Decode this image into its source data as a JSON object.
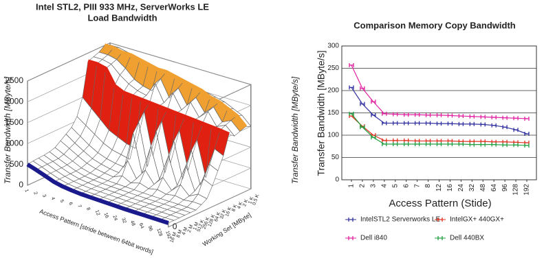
{
  "chart_data": [
    {
      "type": "surface",
      "title": [
        "Intel STL2, PIII 933 MHz, ServerWorks LE",
        "Load Bandwidth"
      ],
      "xlabel": "Access Pattern [stride between 64bit words]",
      "ylabel": "Working Set [MByte]",
      "zlabel": "Transfer Bandwidth [MByte/s]",
      "categories": [
        "1",
        "2",
        "3",
        "4",
        "5",
        "6",
        "7",
        "8",
        "12",
        "16",
        "24",
        "32",
        "48",
        "64",
        "96",
        "128",
        "192"
      ],
      "zlim": [
        0,
        2500
      ],
      "zticks": [
        0,
        500,
        1000,
        1500,
        2000,
        2500
      ],
      "series": [
        {
          "name": "0.5 K",
          "color": "#ffffff",
          "values": [
            2450,
            2450,
            2400,
            2350,
            2300,
            2250,
            2200,
            2200,
            2150,
            2100,
            2050,
            2000,
            1950,
            1900,
            1800,
            1700,
            1500
          ]
        },
        {
          "name": "1 K",
          "color": "#f0a030",
          "values": [
            2500,
            2500,
            2450,
            2450,
            2400,
            2350,
            2300,
            2300,
            2250,
            2200,
            2150,
            2100,
            2000,
            1950,
            1850,
            1750,
            1550
          ]
        },
        {
          "name": "2 K",
          "color": "#ffffff",
          "values": [
            2400,
            2400,
            2350,
            2200,
            2000,
            1900,
            1850,
            2200,
            1800,
            2100,
            1750,
            2000,
            1700,
            1900,
            1600,
            1700,
            1500
          ]
        },
        {
          "name": "4 K",
          "color": "#ffffff",
          "values": [
            2350,
            2350,
            2300,
            2100,
            1950,
            1850,
            1800,
            2150,
            1750,
            2050,
            1700,
            1950,
            1650,
            1850,
            1550,
            1650,
            1450
          ]
        },
        {
          "name": "8 K",
          "color": "#e02010",
          "values": [
            2300,
            2300,
            2250,
            1900,
            1800,
            1780,
            1760,
            1740,
            1720,
            1700,
            1680,
            1660,
            1640,
            1620,
            1600,
            1580,
            1550
          ]
        },
        {
          "name": "16 K",
          "color": "#ffffff",
          "values": [
            1500,
            1300,
            1100,
            900,
            800,
            700,
            650,
            1600,
            600,
            1500,
            550,
            1400,
            500,
            1300,
            450,
            1200,
            1100
          ]
        },
        {
          "name": "32 K",
          "color": "#ffffff",
          "values": [
            1100,
            950,
            800,
            650,
            550,
            500,
            450,
            1400,
            400,
            1300,
            380,
            1200,
            350,
            1100,
            330,
            900,
            800
          ]
        },
        {
          "name": "64 K",
          "color": "#ffffff",
          "values": [
            900,
            750,
            600,
            480,
            400,
            350,
            320,
            1200,
            300,
            1000,
            280,
            900,
            260,
            800,
            250,
            600,
            500
          ]
        },
        {
          "name": "128 K",
          "color": "#ffffff",
          "values": [
            800,
            650,
            520,
            400,
            330,
            280,
            250,
            600,
            230,
            500,
            220,
            450,
            200,
            400,
            190,
            300,
            250
          ]
        },
        {
          "name": "256 K",
          "color": "#ffffff",
          "values": [
            700,
            580,
            460,
            350,
            280,
            240,
            210,
            300,
            190,
            250,
            180,
            220,
            170,
            200,
            160,
            180,
            170
          ]
        },
        {
          "name": "512 K",
          "color": "#ffffff",
          "values": [
            600,
            500,
            400,
            300,
            240,
            200,
            180,
            170,
            160,
            150,
            140,
            130,
            125,
            120,
            115,
            110,
            100
          ]
        },
        {
          "name": "1 M",
          "color": "#ffffff",
          "values": [
            560,
            460,
            370,
            285,
            225,
            195,
            175,
            165,
            155,
            145,
            135,
            127,
            122,
            117,
            112,
            107,
            100
          ]
        },
        {
          "name": "2 M",
          "color": "#ffffff",
          "values": [
            540,
            450,
            360,
            280,
            220,
            190,
            170,
            160,
            150,
            140,
            130,
            125,
            120,
            115,
            110,
            105,
            98
          ]
        },
        {
          "name": "4 M",
          "color": "#ffffff",
          "values": [
            530,
            445,
            355,
            278,
            220,
            190,
            170,
            160,
            150,
            140,
            130,
            123,
            118,
            113,
            108,
            103,
            97
          ]
        },
        {
          "name": "8 M",
          "color": "#ffffff",
          "values": [
            520,
            440,
            352,
            275,
            220,
            190,
            170,
            160,
            150,
            140,
            130,
            122,
            117,
            112,
            107,
            102,
            96
          ]
        },
        {
          "name": "16 M",
          "color": "#1a1a8c",
          "values": [
            500,
            430,
            350,
            270,
            220,
            190,
            170,
            160,
            150,
            140,
            130,
            120,
            115,
            110,
            105,
            100,
            95
          ]
        }
      ]
    },
    {
      "type": "line",
      "title": "Comparison Memory Copy Bandwidth",
      "xlabel": "Access Pattern (Stide)",
      "ylabel": "Transfer Bandwidth [MByte/s]",
      "categories": [
        "1",
        "2",
        "3",
        "4",
        "5",
        "6",
        "7",
        "8",
        "12",
        "16",
        "24",
        "32",
        "48",
        "64",
        "96",
        "128",
        "192"
      ],
      "ylim": [
        0,
        300
      ],
      "yticks": [
        0,
        50,
        100,
        150,
        200,
        250,
        300
      ],
      "grid": true,
      "series": [
        {
          "name": "IntelSTL2 Serverworks LE",
          "color": "#3030a0",
          "values": [
            207,
            170,
            145,
            127,
            127,
            127,
            127,
            127,
            126,
            126,
            125,
            125,
            124,
            122,
            118,
            112,
            103
          ]
        },
        {
          "name": "IntelGX+ 440GX+",
          "color": "#e03020",
          "values": [
            143,
            120,
            100,
            88,
            88,
            88,
            87,
            87,
            87,
            87,
            86,
            86,
            86,
            85,
            85,
            84,
            83
          ]
        },
        {
          "name": "Dell i840",
          "color": "#e020a0",
          "values": [
            257,
            205,
            175,
            148,
            147,
            146,
            146,
            145,
            145,
            144,
            143,
            142,
            141,
            140,
            139,
            138,
            137
          ]
        },
        {
          "name": "Dell 440BX",
          "color": "#20a040",
          "values": [
            148,
            118,
            95,
            80,
            80,
            80,
            80,
            80,
            80,
            80,
            80,
            79,
            79,
            79,
            78,
            78,
            77
          ]
        }
      ]
    }
  ]
}
